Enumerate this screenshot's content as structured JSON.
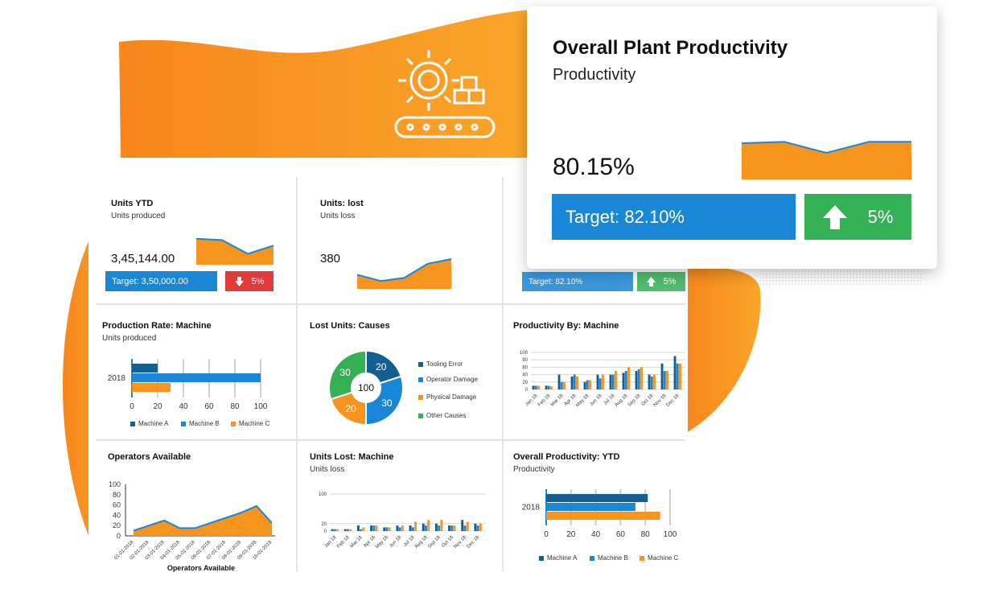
{
  "colors": {
    "orange": "#f7941d",
    "blue": "#1a86d6",
    "dark_blue": "#135f91",
    "green": "#34b155",
    "red": "#e03a3a"
  },
  "hero": {
    "icon": "gear-conveyor-icon"
  },
  "card": {
    "title": "Overall Plant Productivity",
    "subtitle": "Productivity",
    "value": "80.15%",
    "target": "Target: 82.10%",
    "delta": "5%",
    "delta_icon": "arrow-up-icon",
    "sparkline": [
      0.75,
      0.78,
      0.55,
      0.78,
      0.78
    ]
  },
  "units_ytd": {
    "title": "Units YTD",
    "subtitle": "Units produced",
    "value": "3,45,144.00",
    "target": "Target: 3,50,000.00",
    "delta": "5%",
    "delta_icon": "arrow-down-icon",
    "sparkline": [
      0.95,
      0.9,
      0.4,
      0.7
    ]
  },
  "units_lost": {
    "title": "Units: lost",
    "subtitle": "Units loss",
    "value": "380",
    "sparkline": [
      0.45,
      0.25,
      0.35,
      0.8,
      0.95
    ]
  },
  "partial_card": {
    "target": "Target: 82.10%",
    "delta": "5%"
  },
  "production_rate": {
    "title": "Production Rate: Machine",
    "subtitle": "Units produced",
    "chart_data": {
      "type": "bar",
      "orientation": "horizontal",
      "categories": [
        "2018"
      ],
      "series": [
        {
          "name": "Machine A",
          "values": [
            20
          ]
        },
        {
          "name": "Machine B",
          "values": [
            100
          ]
        },
        {
          "name": "Machine C",
          "values": [
            30
          ]
        }
      ],
      "xticks": [
        "0",
        "20",
        "40",
        "60",
        "80",
        "100"
      ],
      "xlim": [
        0,
        100
      ]
    }
  },
  "lost_units": {
    "title": "Lost Units: Causes",
    "center_label": "100",
    "chart_data": {
      "type": "pie",
      "categories": [
        "Tooling Error",
        "Operator Damage",
        "Physical Damage",
        "Other Causes"
      ],
      "values": [
        20,
        30,
        20,
        30
      ]
    }
  },
  "productivity_machine": {
    "title": "Productivity By: Machine",
    "chart_data": {
      "type": "bar",
      "categories": [
        "Jan 18",
        "Feb 18",
        "Mar 18",
        "Apr 18",
        "May 18",
        "Jun 18",
        "Jul 18",
        "Aug 18",
        "Sep 18",
        "Oct 18",
        "Nov 18",
        "Dec 18"
      ],
      "series": [
        {
          "values": [
            10,
            10,
            40,
            35,
            20,
            40,
            40,
            45,
            50,
            40,
            70,
            90
          ]
        },
        {
          "values": [
            10,
            10,
            20,
            40,
            25,
            30,
            40,
            50,
            55,
            35,
            50,
            70
          ]
        },
        {
          "values": [
            10,
            8,
            20,
            35,
            25,
            40,
            50,
            60,
            60,
            40,
            50,
            70
          ]
        }
      ],
      "yticks": [
        "0",
        "20",
        "40",
        "60",
        "80",
        "100"
      ],
      "ylim": [
        0,
        100
      ]
    }
  },
  "operators": {
    "title": "Operators Available",
    "chart_data": {
      "type": "area",
      "categories": [
        "01-01-2018",
        "02-01-2018",
        "03-01-2018",
        "04-01-2018",
        "05-01-2018",
        "06-01-2018",
        "07-01-2018",
        "08-01-2018",
        "09-01-2018",
        "10-01-2018"
      ],
      "values": [
        10,
        20,
        30,
        15,
        15,
        25,
        35,
        45,
        58,
        25
      ],
      "yticks": [
        "0",
        "20",
        "40",
        "60",
        "80",
        "100"
      ],
      "ylim": [
        0,
        100
      ],
      "xlabel": "Operators Available"
    }
  },
  "units_lost_machine": {
    "title": "Units Lost: Machine",
    "subtitle": "Units loss",
    "chart_data": {
      "type": "bar",
      "categories": [
        "Jan 18",
        "Feb 18",
        "Mar 18",
        "Apr 18",
        "May 18",
        "Jun 18",
        "Jul 18",
        "Aug 18",
        "Sep 18",
        "Oct 18",
        "Nov 18",
        "Dec 18"
      ],
      "series": [
        {
          "values": [
            5,
            5,
            15,
            15,
            10,
            15,
            15,
            20,
            20,
            15,
            30,
            20
          ]
        },
        {
          "values": [
            5,
            5,
            5,
            15,
            10,
            10,
            10,
            15,
            15,
            15,
            15,
            15
          ]
        },
        {
          "values": [
            5,
            5,
            10,
            15,
            10,
            15,
            25,
            30,
            30,
            15,
            25,
            20
          ]
        }
      ],
      "yticks": [
        "0",
        "20",
        "100"
      ],
      "ylim": [
        0,
        100
      ]
    }
  },
  "overall_ytd": {
    "title": "Overall Productivity: YTD",
    "subtitle": "Productivity",
    "chart_data": {
      "type": "bar",
      "orientation": "horizontal",
      "categories": [
        "2018"
      ],
      "series": [
        {
          "name": "Machine A",
          "values": [
            82
          ]
        },
        {
          "name": "Machine B",
          "values": [
            72
          ]
        },
        {
          "name": "Machine C",
          "values": [
            92
          ]
        }
      ],
      "xticks": [
        "0",
        "20",
        "40",
        "60",
        "80",
        "100"
      ],
      "xlim": [
        0,
        100
      ]
    }
  }
}
